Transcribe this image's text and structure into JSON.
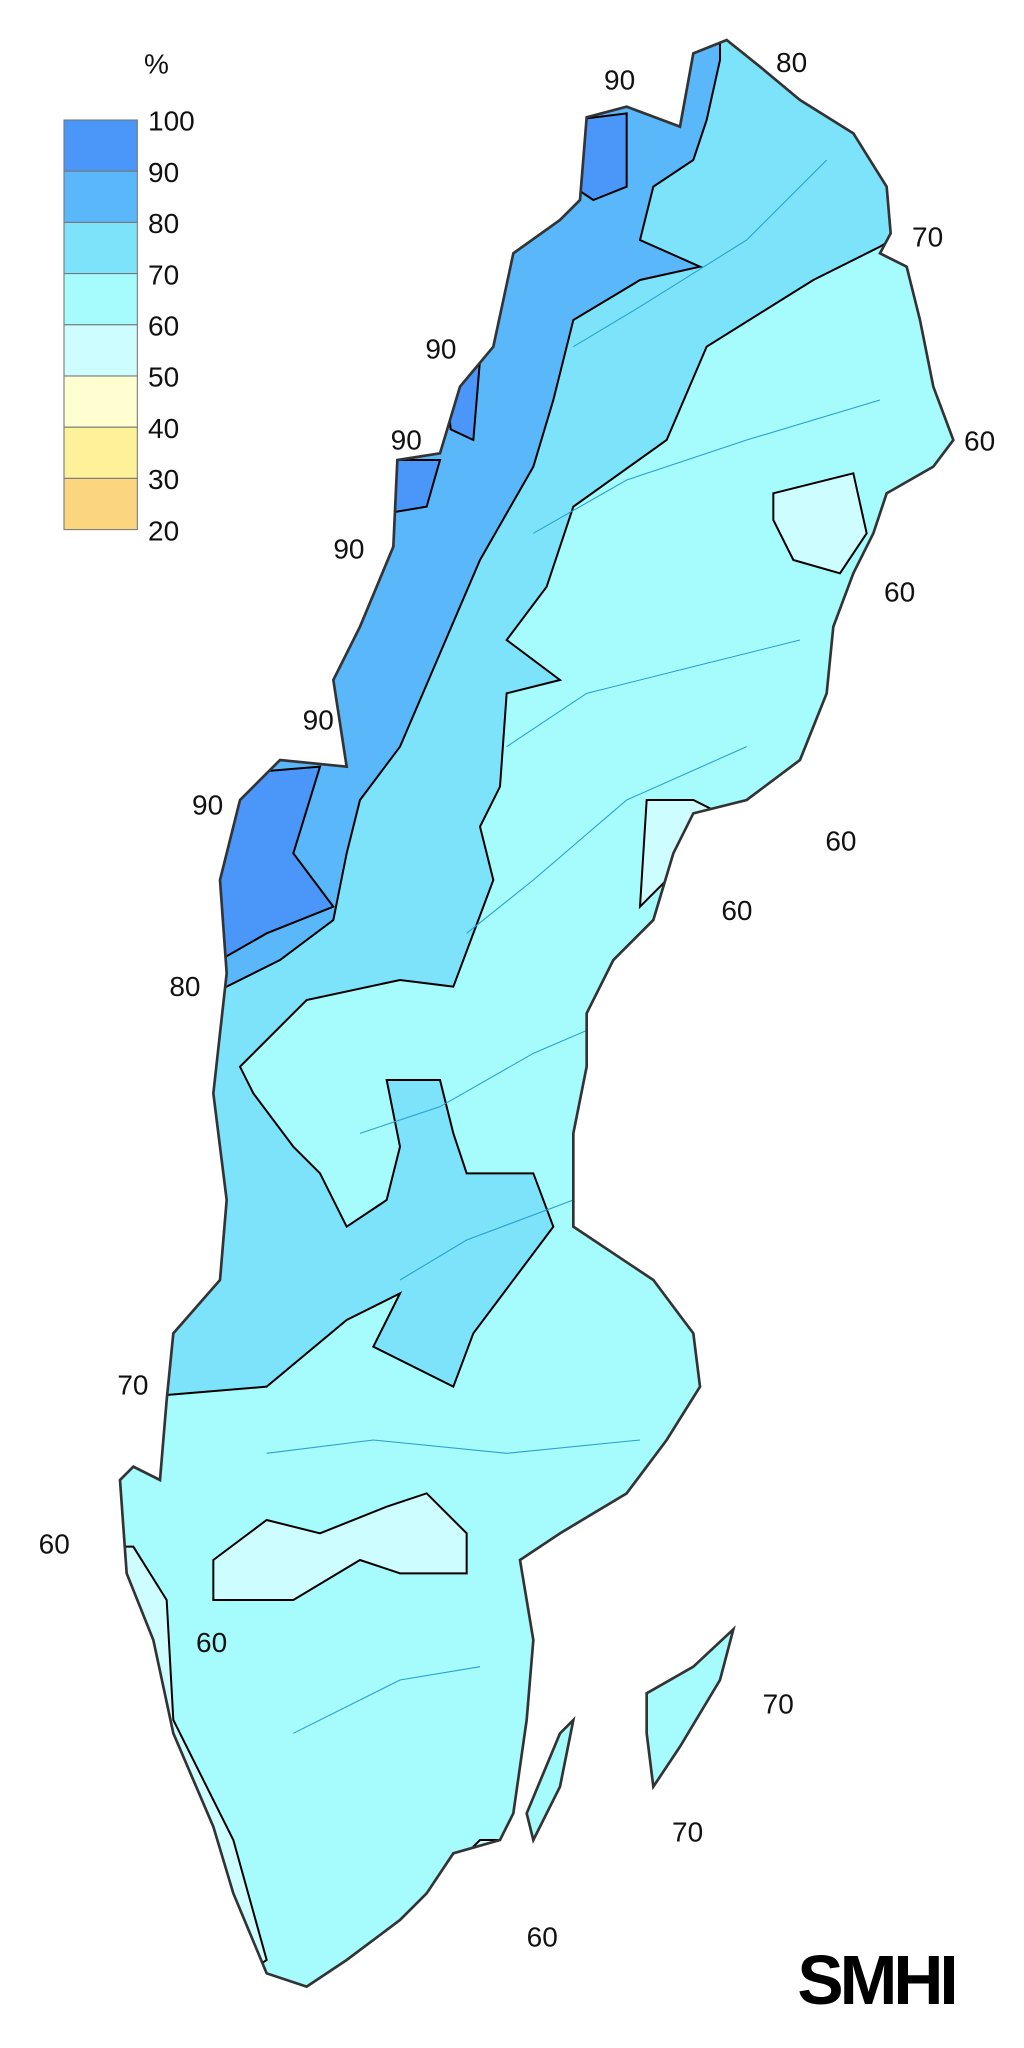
{
  "legend": {
    "unit": "%",
    "ticks": [
      "100",
      "90",
      "80",
      "70",
      "60",
      "50",
      "40",
      "30",
      "20"
    ],
    "bins": [
      {
        "range": "90-100",
        "color": "#4a97f9"
      },
      {
        "range": "80-90",
        "color": "#5ab7fa"
      },
      {
        "range": "70-80",
        "color": "#7de3fb"
      },
      {
        "range": "60-70",
        "color": "#a6fbfd"
      },
      {
        "range": "50-60",
        "color": "#cdfdfe"
      },
      {
        "range": "40-50",
        "color": "#fefed0"
      },
      {
        "range": "30-40",
        "color": "#fdf29a"
      },
      {
        "range": "20-30",
        "color": "#fcd67e"
      }
    ]
  },
  "map": {
    "region": "Sweden",
    "contour_labels": [
      "90",
      "80",
      "70",
      "90",
      "90",
      "60",
      "90",
      "60",
      "90",
      "90",
      "60",
      "60",
      "80",
      "70",
      "60",
      "60",
      "70",
      "70",
      "60"
    ],
    "outline_color": "#333333",
    "contour_color": "#000000",
    "river_color": "#2a9fd0"
  },
  "logo": "SMHI"
}
